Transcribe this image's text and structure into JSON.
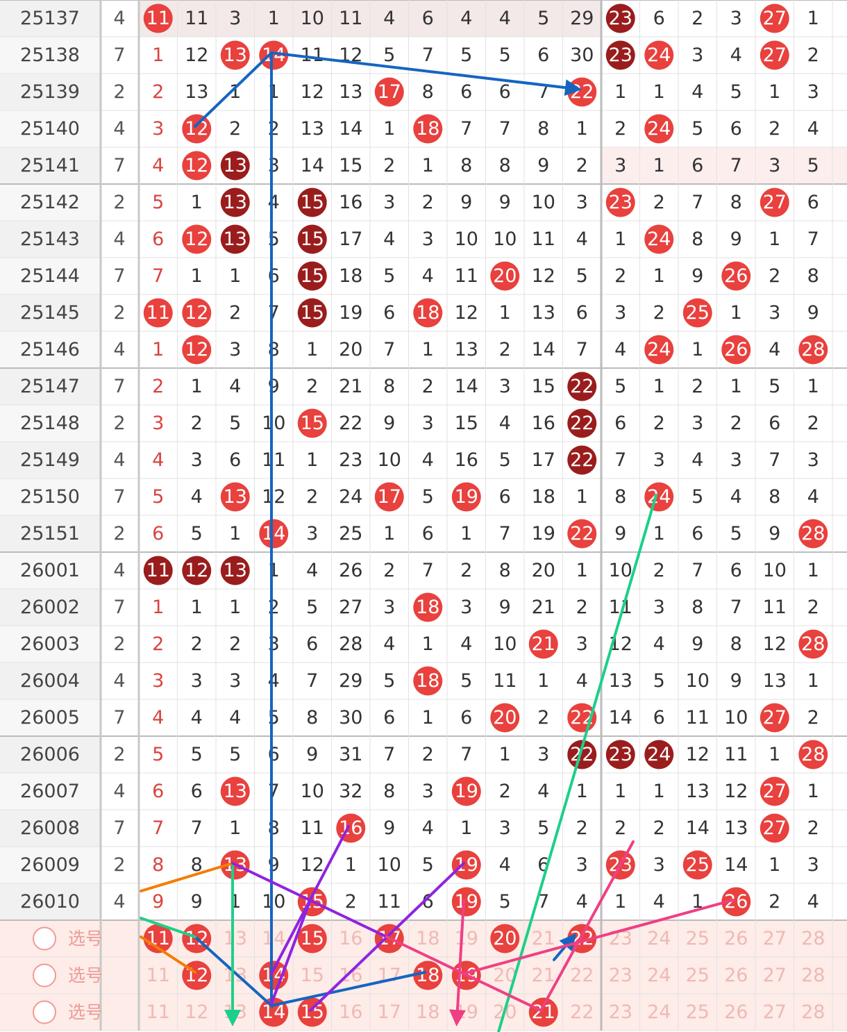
{
  "rows": [
    {
      "period": "25137",
      "n": 4,
      "cells": [
        {
          "value": 11,
          "ball": "red"
        },
        11,
        3,
        1,
        10,
        11,
        4,
        6,
        4,
        4,
        5,
        29,
        {
          "value": 23,
          "ball": "dark"
        },
        6,
        2,
        3,
        {
          "value": 27,
          "ball": "red"
        },
        1
      ]
    },
    {
      "period": "25138",
      "n": 7,
      "cells": [
        1,
        12,
        {
          "value": 13,
          "ball": "red"
        },
        {
          "value": 14,
          "ball": "red"
        },
        11,
        12,
        5,
        7,
        5,
        5,
        6,
        30,
        {
          "value": 23,
          "ball": "dark"
        },
        {
          "value": 24,
          "ball": "red"
        },
        3,
        4,
        {
          "value": 27,
          "ball": "red"
        },
        2
      ]
    },
    {
      "period": "25139",
      "n": 2,
      "cells": [
        2,
        13,
        1,
        1,
        12,
        13,
        {
          "value": 17,
          "ball": "red"
        },
        8,
        6,
        6,
        7,
        {
          "value": 22,
          "ball": "red"
        },
        1,
        1,
        4,
        5,
        1,
        3
      ]
    },
    {
      "period": "25140",
      "n": 4,
      "cells": [
        3,
        {
          "value": 12,
          "ball": "red"
        },
        2,
        2,
        13,
        14,
        1,
        {
          "value": 18,
          "ball": "red"
        },
        7,
        7,
        8,
        1,
        2,
        {
          "value": 24,
          "ball": "red"
        },
        5,
        6,
        2,
        4
      ]
    },
    {
      "period": "25141",
      "n": 7,
      "cells": [
        4,
        {
          "value": 12,
          "ball": "red"
        },
        {
          "value": 13,
          "ball": "dark"
        },
        3,
        14,
        15,
        2,
        1,
        8,
        8,
        9,
        2,
        3,
        1,
        6,
        7,
        3,
        5
      ]
    },
    {
      "period": "25142",
      "n": 2,
      "cells": [
        5,
        1,
        {
          "value": 13,
          "ball": "dark"
        },
        4,
        {
          "value": 15,
          "ball": "dark"
        },
        16,
        3,
        2,
        9,
        9,
        10,
        3,
        {
          "value": 23,
          "ball": "red"
        },
        2,
        7,
        8,
        {
          "value": 27,
          "ball": "red"
        },
        6
      ]
    },
    {
      "period": "25143",
      "n": 4,
      "cells": [
        6,
        {
          "value": 12,
          "ball": "red"
        },
        {
          "value": 13,
          "ball": "dark"
        },
        5,
        {
          "value": 15,
          "ball": "dark"
        },
        17,
        4,
        3,
        10,
        10,
        11,
        4,
        1,
        {
          "value": 24,
          "ball": "red"
        },
        8,
        9,
        1,
        7
      ]
    },
    {
      "period": "25144",
      "n": 7,
      "cells": [
        7,
        1,
        1,
        6,
        {
          "value": 15,
          "ball": "dark"
        },
        18,
        5,
        4,
        11,
        {
          "value": 20,
          "ball": "red"
        },
        12,
        5,
        2,
        1,
        9,
        {
          "value": 26,
          "ball": "red"
        },
        2,
        8
      ]
    },
    {
      "period": "25145",
      "n": 2,
      "cells": [
        {
          "value": 11,
          "ball": "red"
        },
        {
          "value": 12,
          "ball": "red"
        },
        2,
        7,
        {
          "value": 15,
          "ball": "dark"
        },
        19,
        6,
        {
          "value": 18,
          "ball": "red"
        },
        12,
        1,
        13,
        6,
        3,
        2,
        {
          "value": 25,
          "ball": "red"
        },
        1,
        3,
        9
      ]
    },
    {
      "period": "25146",
      "n": 4,
      "cells": [
        1,
        {
          "value": 12,
          "ball": "red"
        },
        3,
        8,
        1,
        20,
        7,
        1,
        13,
        2,
        14,
        7,
        4,
        {
          "value": 24,
          "ball": "red"
        },
        1,
        {
          "value": 26,
          "ball": "red"
        },
        4,
        {
          "value": 28,
          "ball": "red"
        }
      ]
    },
    {
      "period": "25147",
      "n": 7,
      "cells": [
        2,
        1,
        4,
        9,
        2,
        21,
        8,
        2,
        14,
        3,
        15,
        {
          "value": 22,
          "ball": "dark"
        },
        5,
        1,
        2,
        1,
        5,
        1
      ]
    },
    {
      "period": "25148",
      "n": 2,
      "cells": [
        3,
        2,
        5,
        10,
        {
          "value": 15,
          "ball": "red"
        },
        22,
        9,
        3,
        15,
        4,
        16,
        {
          "value": 22,
          "ball": "dark"
        },
        6,
        2,
        3,
        2,
        6,
        2
      ]
    },
    {
      "period": "25149",
      "n": 4,
      "cells": [
        4,
        3,
        6,
        11,
        1,
        23,
        10,
        4,
        16,
        5,
        17,
        {
          "value": 22,
          "ball": "dark"
        },
        7,
        3,
        4,
        3,
        7,
        3
      ]
    },
    {
      "period": "25150",
      "n": 7,
      "cells": [
        5,
        4,
        {
          "value": 13,
          "ball": "red"
        },
        12,
        2,
        24,
        {
          "value": 17,
          "ball": "red"
        },
        5,
        {
          "value": 19,
          "ball": "red"
        },
        6,
        18,
        1,
        8,
        {
          "value": 24,
          "ball": "red"
        },
        5,
        4,
        8,
        4
      ]
    },
    {
      "period": "25151",
      "n": 2,
      "cells": [
        6,
        5,
        1,
        {
          "value": 14,
          "ball": "red"
        },
        3,
        25,
        1,
        6,
        1,
        7,
        19,
        {
          "value": 22,
          "ball": "red"
        },
        9,
        1,
        6,
        5,
        9,
        {
          "value": 28,
          "ball": "red"
        }
      ]
    },
    {
      "period": "26001",
      "n": 4,
      "cells": [
        {
          "value": 11,
          "ball": "dark"
        },
        {
          "value": 12,
          "ball": "dark"
        },
        {
          "value": 13,
          "ball": "dark"
        },
        1,
        4,
        26,
        2,
        7,
        2,
        8,
        20,
        1,
        10,
        2,
        7,
        6,
        10,
        1
      ]
    },
    {
      "period": "26002",
      "n": 7,
      "cells": [
        1,
        1,
        1,
        2,
        5,
        27,
        3,
        {
          "value": 18,
          "ball": "red"
        },
        3,
        9,
        21,
        2,
        11,
        3,
        8,
        7,
        11,
        2
      ]
    },
    {
      "period": "26003",
      "n": 2,
      "cells": [
        2,
        2,
        2,
        3,
        6,
        28,
        4,
        1,
        4,
        10,
        {
          "value": 21,
          "ball": "red"
        },
        3,
        12,
        4,
        9,
        8,
        12,
        {
          "value": 28,
          "ball": "red"
        }
      ]
    },
    {
      "period": "26004",
      "n": 4,
      "cells": [
        3,
        3,
        3,
        4,
        7,
        29,
        5,
        {
          "value": 18,
          "ball": "red"
        },
        5,
        11,
        1,
        4,
        13,
        5,
        10,
        9,
        13,
        1
      ]
    },
    {
      "period": "26005",
      "n": 7,
      "cells": [
        4,
        4,
        4,
        5,
        8,
        30,
        6,
        1,
        6,
        {
          "value": 20,
          "ball": "red"
        },
        2,
        {
          "value": 22,
          "ball": "red"
        },
        14,
        6,
        11,
        10,
        {
          "value": 27,
          "ball": "red"
        },
        2
      ]
    },
    {
      "period": "26006",
      "n": 2,
      "cells": [
        5,
        5,
        5,
        6,
        9,
        31,
        7,
        2,
        7,
        1,
        3,
        {
          "value": 22,
          "ball": "dark"
        },
        {
          "value": 23,
          "ball": "dark"
        },
        {
          "value": 24,
          "ball": "dark"
        },
        12,
        11,
        1,
        {
          "value": 28,
          "ball": "red"
        }
      ]
    },
    {
      "period": "26007",
      "n": 4,
      "cells": [
        6,
        6,
        {
          "value": 13,
          "ball": "red"
        },
        7,
        10,
        32,
        8,
        3,
        {
          "value": 19,
          "ball": "red"
        },
        2,
        4,
        1,
        1,
        1,
        13,
        12,
        {
          "value": 27,
          "ball": "red"
        },
        1
      ]
    },
    {
      "period": "26008",
      "n": 7,
      "cells": [
        7,
        7,
        1,
        8,
        11,
        {
          "value": 16,
          "ball": "red"
        },
        9,
        4,
        1,
        3,
        5,
        2,
        2,
        2,
        14,
        13,
        {
          "value": 27,
          "ball": "red"
        },
        2
      ]
    },
    {
      "period": "26009",
      "n": 2,
      "cells": [
        8,
        8,
        {
          "value": 13,
          "ball": "red"
        },
        9,
        12,
        1,
        10,
        5,
        {
          "value": 19,
          "ball": "red"
        },
        4,
        6,
        3,
        {
          "value": 23,
          "ball": "red"
        },
        3,
        {
          "value": 25,
          "ball": "red"
        },
        14,
        1,
        3
      ]
    },
    {
      "period": "26010",
      "n": 4,
      "cells": [
        9,
        9,
        1,
        10,
        {
          "value": 15,
          "ball": "red"
        },
        2,
        11,
        6,
        {
          "value": 19,
          "ball": "red"
        },
        5,
        7,
        4,
        1,
        4,
        1,
        {
          "value": 26,
          "ball": "red"
        },
        2,
        4
      ]
    }
  ],
  "picks": [
    {
      "label": "选号",
      "cells": [
        {
          "value": 11,
          "ball": "red"
        },
        {
          "value": 12,
          "ball": "red"
        },
        13,
        14,
        {
          "value": 15,
          "ball": "red"
        },
        16,
        {
          "value": 17,
          "ball": "red"
        },
        18,
        19,
        {
          "value": 20,
          "ball": "red"
        },
        21,
        {
          "value": 22,
          "ball": "red"
        },
        23,
        24,
        25,
        26,
        27,
        28
      ]
    },
    {
      "label": "选号",
      "cells": [
        11,
        {
          "value": 12,
          "ball": "red"
        },
        13,
        {
          "value": 14,
          "ball": "red"
        },
        15,
        16,
        17,
        {
          "value": 18,
          "ball": "red"
        },
        {
          "value": 19,
          "ball": "red"
        },
        20,
        21,
        22,
        23,
        24,
        25,
        26,
        27,
        28
      ]
    },
    {
      "label": "选号",
      "cells": [
        11,
        12,
        13,
        {
          "value": 14,
          "ball": "red"
        },
        {
          "value": 15,
          "ball": "red"
        },
        16,
        17,
        18,
        19,
        20,
        {
          "value": 21,
          "ball": "red"
        },
        22,
        23,
        24,
        25,
        26,
        27,
        28
      ]
    }
  ]
}
